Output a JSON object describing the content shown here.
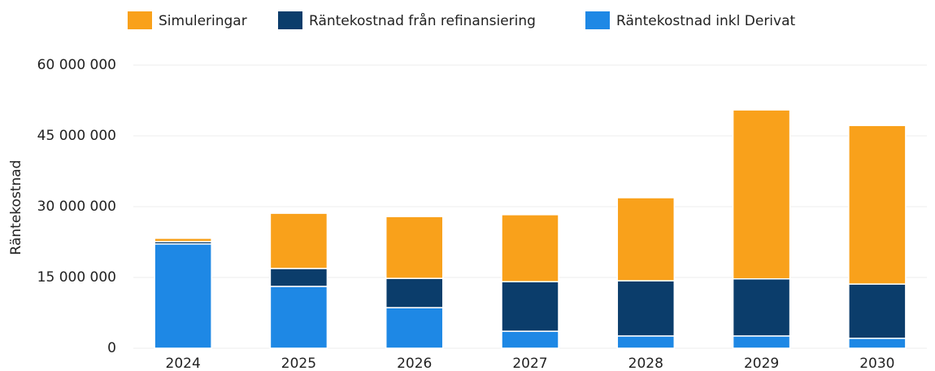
{
  "chart_data": {
    "type": "stacked_bar",
    "y_axis_label": "Räntekostnad",
    "categories": [
      "2024",
      "2025",
      "2026",
      "2027",
      "2028",
      "2029",
      "2030"
    ],
    "series": [
      {
        "name": "Räntekostnad inkl Derivat",
        "color": "#1e88e5",
        "values": [
          22100000,
          13100000,
          8600000,
          3600000,
          2600000,
          2600000,
          2100000
        ]
      },
      {
        "name": "Räntekostnad från refinansiering",
        "color": "#0b3d6b",
        "values": [
          500000,
          3800000,
          6200000,
          10500000,
          11700000,
          12100000,
          11500000
        ]
      },
      {
        "name": "Simuleringar",
        "color": "#f9a11b",
        "values": [
          700000,
          11700000,
          13100000,
          14200000,
          17600000,
          35800000,
          33600000
        ]
      }
    ],
    "legend_order": [
      "Simuleringar",
      "Räntekostnad från refinansiering",
      "Räntekostnad inkl Derivat"
    ],
    "ylim": [
      0,
      60000000
    ],
    "yticks": [
      0,
      {
        "value": 15000000,
        "label": "15 000 000"
      },
      {
        "value": 30000000,
        "label": "30 000 000"
      },
      {
        "value": 45000000,
        "label": "45 000 000"
      },
      {
        "value": 60000000,
        "label": "60 000 000"
      }
    ],
    "grid": true,
    "legend": "top"
  }
}
